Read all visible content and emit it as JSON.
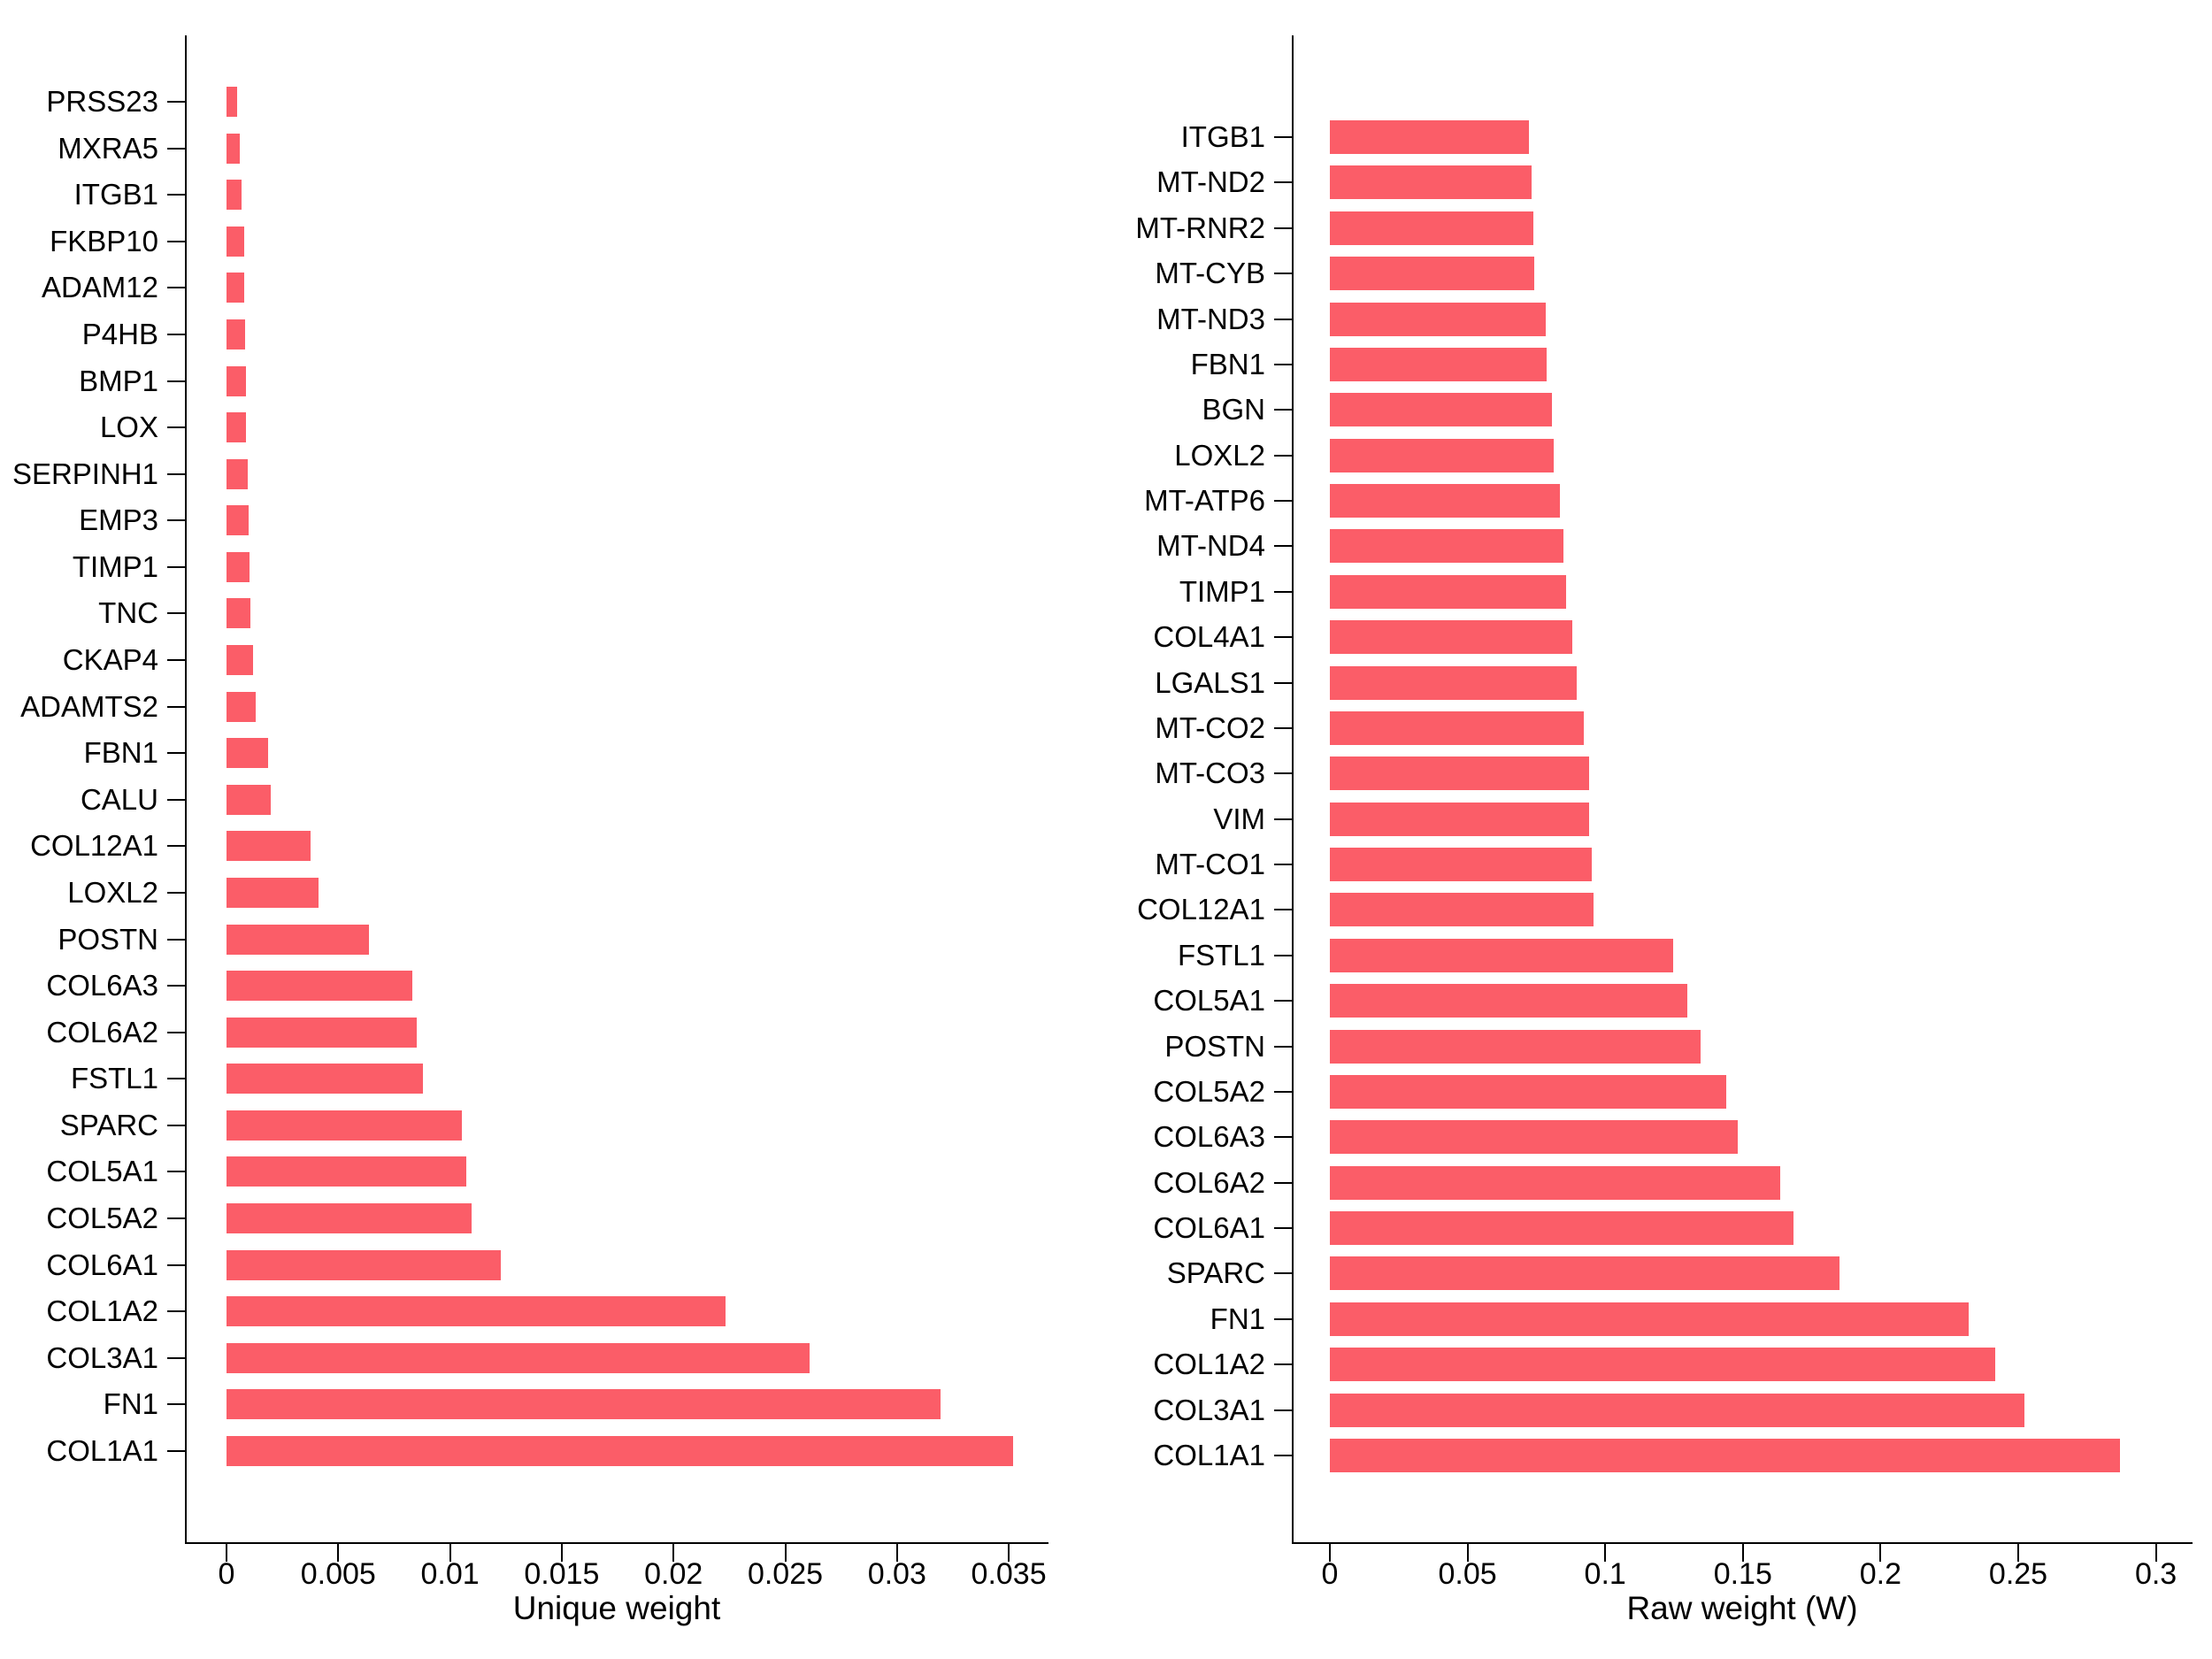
{
  "figure": {
    "background_color": "#ffffff",
    "bar_color": "#FB5D68",
    "axis_color": "#000000",
    "text_color": "#000000"
  },
  "chart_data": [
    {
      "type": "bar",
      "orientation": "horizontal",
      "xlabel": "Unique weight",
      "categories": [
        "PRSS23",
        "MXRA5",
        "ITGB1",
        "FKBP10",
        "ADAM12",
        "P4HB",
        "BMP1",
        "LOX",
        "SERPINH1",
        "EMP3",
        "TIMP1",
        "TNC",
        "CKAP4",
        "ADAMTS2",
        "FBN1",
        "CALU",
        "COL12A1",
        "LOXL2",
        "POSTN",
        "COL6A3",
        "COL6A2",
        "FSTL1",
        "SPARC",
        "COL5A1",
        "COL5A2",
        "COL6A1",
        "COL1A2",
        "COL3A1",
        "FN1",
        "COL1A1"
      ],
      "values": [
        0.00048,
        0.00059,
        0.00066,
        0.00078,
        0.00078,
        0.00085,
        0.00087,
        0.00087,
        0.00095,
        0.00097,
        0.00102,
        0.00107,
        0.00118,
        0.00132,
        0.00185,
        0.00199,
        0.00376,
        0.0041,
        0.00636,
        0.00832,
        0.00853,
        0.00878,
        0.01055,
        0.01071,
        0.01095,
        0.01229,
        0.02233,
        0.02609,
        0.03196,
        0.0352
      ],
      "xlim": [
        0,
        0.0375
      ],
      "xticks": [
        0,
        0.005,
        0.01,
        0.015,
        0.02,
        0.025,
        0.03,
        0.035
      ],
      "xtick_labels": [
        "0",
        "0.005",
        "0.01",
        "0.015",
        "0.02",
        "0.025",
        "0.03",
        "0.035"
      ],
      "grid": false,
      "legend": null
    },
    {
      "type": "bar",
      "orientation": "horizontal",
      "xlabel": "Raw weight (W)",
      "categories": [
        "ITGB1",
        "MT-ND2",
        "MT-RNR2",
        "MT-CYB",
        "MT-ND3",
        "FBN1",
        "BGN",
        "LOXL2",
        "MT-ATP6",
        "MT-ND4",
        "TIMP1",
        "COL4A1",
        "LGALS1",
        "MT-CO2",
        "MT-CO3",
        "VIM",
        "MT-CO1",
        "COL12A1",
        "FSTL1",
        "COL5A1",
        "POSTN",
        "COL5A2",
        "COL6A3",
        "COL6A2",
        "COL6A1",
        "SPARC",
        "FN1",
        "COL1A2",
        "COL3A1",
        "COL1A1"
      ],
      "values": [
        0.0723,
        0.0734,
        0.074,
        0.0743,
        0.0784,
        0.0787,
        0.0808,
        0.0814,
        0.0836,
        0.0849,
        0.0858,
        0.088,
        0.0897,
        0.0921,
        0.0941,
        0.0943,
        0.095,
        0.0956,
        0.1247,
        0.1297,
        0.1345,
        0.1441,
        0.148,
        0.1635,
        0.1683,
        0.1851,
        0.2319,
        0.2415,
        0.2522,
        0.2871
      ],
      "xlim": [
        0,
        0.31
      ],
      "xticks": [
        0,
        0.05,
        0.1,
        0.15,
        0.2,
        0.25,
        0.3
      ],
      "xtick_labels": [
        "0",
        "0.05",
        "0.1",
        "0.15",
        "0.2",
        "0.25",
        "0.3"
      ],
      "grid": false,
      "legend": null
    }
  ]
}
